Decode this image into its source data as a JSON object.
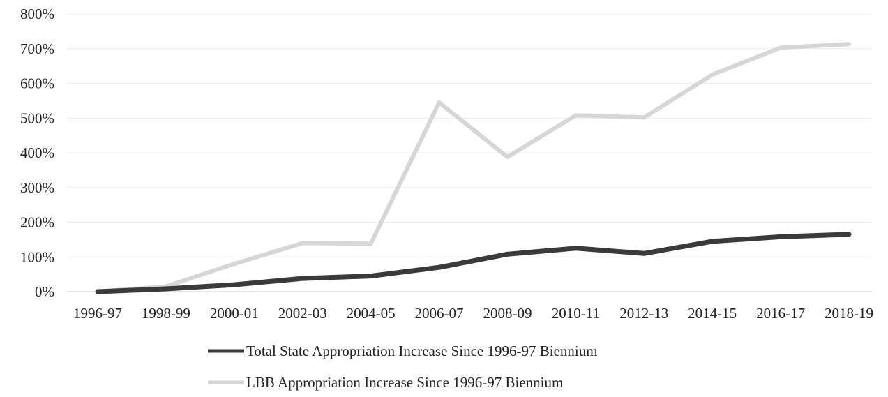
{
  "chart_data": {
    "type": "line",
    "title": "",
    "xlabel": "",
    "ylabel": "",
    "categories": [
      "1996-97",
      "1998-99",
      "2000-01",
      "2002-03",
      "2004-05",
      "2006-07",
      "2008-09",
      "2010-11",
      "2012-13",
      "2014-15",
      "2016-17",
      "2018-19"
    ],
    "ylim": [
      0,
      800
    ],
    "yticks": [
      "0%",
      "100%",
      "200%",
      "300%",
      "400%",
      "500%",
      "600%",
      "700%",
      "800%"
    ],
    "grid": true,
    "legend_position": "bottom",
    "series": [
      {
        "name": "Total State Appropriation Increase Since 1996-97 Biennium",
        "color": "#3a3a3a",
        "values": [
          0,
          8,
          20,
          38,
          45,
          70,
          108,
          125,
          110,
          145,
          158,
          165
        ]
      },
      {
        "name": "LBB Appropriation Increase Since 1996-97 Biennium",
        "color": "#d6d6d6",
        "values": [
          0,
          15,
          80,
          140,
          138,
          545,
          388,
          508,
          502,
          625,
          703,
          713
        ]
      }
    ]
  }
}
